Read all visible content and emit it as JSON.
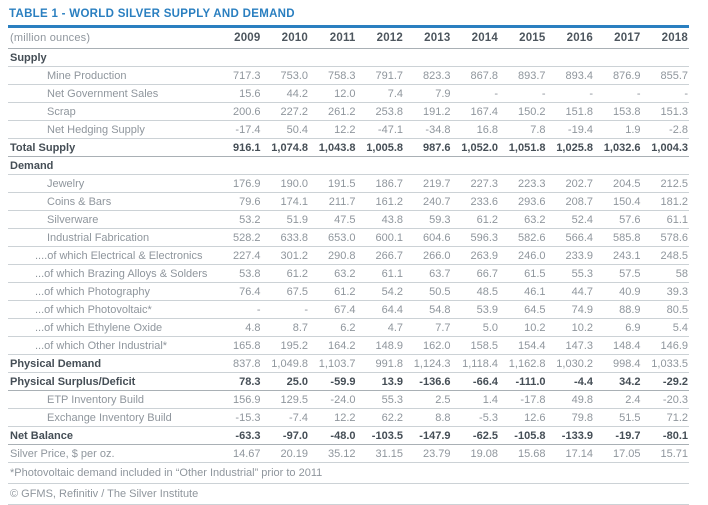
{
  "table": {
    "title": "TABLE 1 - WORLD SILVER SUPPLY AND DEMAND",
    "unit_label": "(million ounces)",
    "footnote": "*Photovoltaic demand included in “Other Industrial” prior to 2011",
    "copyright": "© GFMS, Refinitiv / The Silver Institute"
  },
  "colors": {
    "accent_blue": "#2a7fc0",
    "dark_text": "#454e56",
    "gray_text": "#8f969d",
    "light_border": "#ccd2d6",
    "medium_border": "#a9b0b5"
  },
  "chart_data": {
    "type": "table",
    "title": "TABLE 1 - WORLD SILVER SUPPLY AND DEMAND",
    "unit": "million ounces",
    "columns": [
      "2009",
      "2010",
      "2011",
      "2012",
      "2013",
      "2014",
      "2015",
      "2016",
      "2017",
      "2018"
    ],
    "rows": [
      {
        "label": "Supply",
        "style": "section",
        "values": [
          "",
          "",
          "",
          "",
          "",
          "",
          "",
          "",
          "",
          ""
        ]
      },
      {
        "label": "Mine Production",
        "style": "item",
        "values": [
          "717.3",
          "753.0",
          "758.3",
          "791.7",
          "823.3",
          "867.8",
          "893.7",
          "893.4",
          "876.9",
          "855.7"
        ]
      },
      {
        "label": "Net Government Sales",
        "style": "item",
        "values": [
          "15.6",
          "44.2",
          "12.0",
          "7.4",
          "7.9",
          "-",
          "-",
          "-",
          "-",
          "-"
        ]
      },
      {
        "label": "Scrap",
        "style": "item",
        "values": [
          "200.6",
          "227.2",
          "261.2",
          "253.8",
          "191.2",
          "167.4",
          "150.2",
          "151.8",
          "153.8",
          "151.3"
        ]
      },
      {
        "label": "Net Hedging Supply",
        "style": "item",
        "values": [
          "-17.4",
          "50.4",
          "12.2",
          "-47.1",
          "-34.8",
          "16.8",
          "7.8",
          "-19.4",
          "1.9",
          "-2.8"
        ]
      },
      {
        "label": "Total Supply",
        "style": "total",
        "values": [
          "916.1",
          "1,074.8",
          "1,043.8",
          "1,005.8",
          "987.6",
          "1,052.0",
          "1,051.8",
          "1,025.8",
          "1,032.6",
          "1,004.3"
        ]
      },
      {
        "label": "Demand",
        "style": "section",
        "values": [
          "",
          "",
          "",
          "",
          "",
          "",
          "",
          "",
          "",
          ""
        ]
      },
      {
        "label": "Jewelry",
        "style": "item",
        "values": [
          "176.9",
          "190.0",
          "191.5",
          "186.7",
          "219.7",
          "227.3",
          "223.3",
          "202.7",
          "204.5",
          "212.5"
        ]
      },
      {
        "label": "Coins & Bars",
        "style": "item",
        "values": [
          "79.6",
          "174.1",
          "211.7",
          "161.2",
          "240.7",
          "233.6",
          "293.6",
          "208.7",
          "150.4",
          "181.2"
        ]
      },
      {
        "label": "Silverware",
        "style": "item",
        "values": [
          "53.2",
          "51.9",
          "47.5",
          "43.8",
          "59.3",
          "61.2",
          "63.2",
          "52.4",
          "57.6",
          "61.1"
        ]
      },
      {
        "label": "Industrial Fabrication",
        "style": "item",
        "values": [
          "528.2",
          "633.8",
          "653.0",
          "600.1",
          "604.6",
          "596.3",
          "582.6",
          "566.4",
          "585.8",
          "578.6"
        ]
      },
      {
        "label": "....of which Electrical & Electronics",
        "style": "subitem",
        "values": [
          "227.4",
          "301.2",
          "290.8",
          "266.7",
          "266.0",
          "263.9",
          "246.0",
          "233.9",
          "243.1",
          "248.5"
        ]
      },
      {
        "label": "...of which Brazing Alloys & Solders",
        "style": "subitem",
        "values": [
          "53.8",
          "61.2",
          "63.2",
          "61.1",
          "63.7",
          "66.7",
          "61.5",
          "55.3",
          "57.5",
          "58"
        ]
      },
      {
        "label": "...of which Photography",
        "style": "subitem",
        "values": [
          "76.4",
          "67.5",
          "61.2",
          "54.2",
          "50.5",
          "48.5",
          "46.1",
          "44.7",
          "40.9",
          "39.3"
        ]
      },
      {
        "label": "...of which Photovoltaic*",
        "style": "subitem",
        "values": [
          "-",
          "-",
          "67.4",
          "64.4",
          "54.8",
          "53.9",
          "64.5",
          "74.9",
          "88.9",
          "80.5"
        ]
      },
      {
        "label": "...of which Ethylene Oxide",
        "style": "subitem",
        "values": [
          "4.8",
          "8.7",
          "6.2",
          "4.7",
          "7.7",
          "5.0",
          "10.2",
          "10.2",
          "6.9",
          "5.4"
        ]
      },
      {
        "label": "...of which Other Industrial*",
        "style": "subitem",
        "values": [
          "165.8",
          "195.2",
          "164.2",
          "148.9",
          "162.0",
          "158.5",
          "154.4",
          "147.3",
          "148.4",
          "146.9"
        ]
      },
      {
        "label": "Physical Demand",
        "style": "boldlabel",
        "values": [
          "837.8",
          "1,049.8",
          "1,103.7",
          "991.8",
          "1,124.3",
          "1,118.4",
          "1,162.8",
          "1,030.2",
          "998.4",
          "1,033.5"
        ]
      },
      {
        "label": "Physical Surplus/Deficit",
        "style": "total",
        "values": [
          "78.3",
          "25.0",
          "-59.9",
          "13.9",
          "-136.6",
          "-66.4",
          "-111.0",
          "-4.4",
          "34.2",
          "-29.2"
        ]
      },
      {
        "label": "ETP Inventory Build",
        "style": "item",
        "values": [
          "156.9",
          "129.5",
          "-24.0",
          "55.3",
          "2.5",
          "1.4",
          "-17.8",
          "49.8",
          "2.4",
          "-20.3"
        ]
      },
      {
        "label": "Exchange Inventory Build",
        "style": "item",
        "values": [
          "-15.3",
          "-7.4",
          "12.2",
          "62.2",
          "8.8",
          "-5.3",
          "12.6",
          "79.8",
          "51.5",
          "71.2"
        ]
      },
      {
        "label": "Net Balance",
        "style": "total",
        "values": [
          "-63.3",
          "-97.0",
          "-48.0",
          "-103.5",
          "-147.9",
          "-62.5",
          "-105.8",
          "-133.9",
          "-19.7",
          "-80.1"
        ]
      },
      {
        "label": "Silver Price, $ per oz.",
        "style": "plain",
        "values": [
          "14.67",
          "20.19",
          "35.12",
          "31.15",
          "23.79",
          "19.08",
          "15.68",
          "17.14",
          "17.05",
          "15.71"
        ]
      }
    ]
  }
}
